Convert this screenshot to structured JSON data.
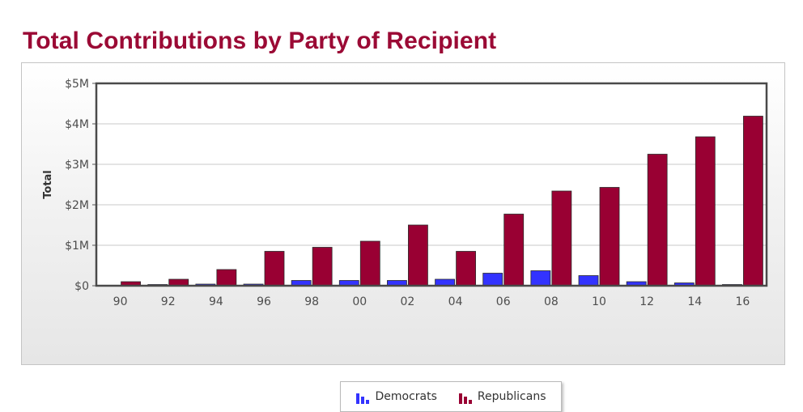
{
  "page": {
    "title": "Total Contributions by Party of Recipient"
  },
  "legend": {
    "democrats_label": "Democrats",
    "republicans_label": "Republicans"
  },
  "colors": {
    "democrats": "#3333ff",
    "republicans": "#990033",
    "title": "#9b0a35"
  },
  "chart_data": {
    "type": "bar",
    "title": "",
    "xlabel": "",
    "ylabel": "Total",
    "categories": [
      "90",
      "92",
      "94",
      "96",
      "98",
      "00",
      "02",
      "04",
      "06",
      "08",
      "10",
      "12",
      "14",
      "16"
    ],
    "series": [
      {
        "name": "Democrats",
        "color": "#3333ff",
        "values": [
          5000,
          30000,
          40000,
          40000,
          130000,
          130000,
          130000,
          160000,
          310000,
          370000,
          250000,
          100000,
          70000,
          30000
        ]
      },
      {
        "name": "Republicans",
        "color": "#990033",
        "values": [
          100000,
          160000,
          400000,
          850000,
          950000,
          1100000,
          1500000,
          850000,
          1770000,
          2340000,
          2430000,
          3250000,
          3680000,
          4190000
        ]
      }
    ],
    "ylim": [
      0,
      5000000
    ],
    "yticks": [
      {
        "value": 0,
        "label": "$0"
      },
      {
        "value": 1000000,
        "label": "$1M"
      },
      {
        "value": 2000000,
        "label": "$2M"
      },
      {
        "value": 3000000,
        "label": "$3M"
      },
      {
        "value": 4000000,
        "label": "$4M"
      },
      {
        "value": 5000000,
        "label": "$5M"
      }
    ],
    "grid": true,
    "legend_position": "bottom-center"
  }
}
